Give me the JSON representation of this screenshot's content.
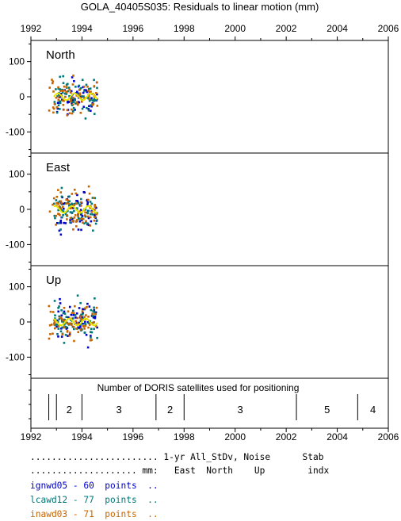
{
  "chart_data": {
    "type": "scatter",
    "title": "GOLA_40405S035: Residuals to linear motion (mm)",
    "x_ticks": [
      "1992",
      "1994",
      "1996",
      "1998",
      "2000",
      "2002",
      "2004",
      "2006"
    ],
    "xlim": [
      1992,
      2006
    ],
    "panels": [
      {
        "label": "North",
        "ylim": [
          -160,
          160
        ],
        "y_ticks": [
          "100",
          "0",
          "-100"
        ]
      },
      {
        "label": "East",
        "ylim": [
          -160,
          160
        ],
        "y_ticks": [
          "100",
          "0",
          "-100"
        ]
      },
      {
        "label": "Up",
        "ylim": [
          -160,
          160
        ],
        "y_ticks": [
          "100",
          "0",
          "-100"
        ]
      }
    ],
    "series": [
      {
        "name": "ignwd05",
        "color": "#0000c8",
        "x_range": [
          1993.0,
          1994.6
        ],
        "points": 60
      },
      {
        "name": "lcawd12",
        "color": "#007878",
        "x_range": [
          1992.9,
          1994.6
        ],
        "points": 77
      },
      {
        "name": "inawd03",
        "color": "#c86400",
        "x_range": [
          1992.7,
          1994.6
        ],
        "points": 71
      }
    ],
    "smooth_color": "#e6e600",
    "satellites": {
      "title": "Number of DORIS satellites used for positioning",
      "segments": [
        {
          "start": 1992.7,
          "end": 1993.0,
          "label": ""
        },
        {
          "start": 1993.0,
          "end": 1994.0,
          "label": "2"
        },
        {
          "start": 1994.0,
          "end": 1996.9,
          "label": "3"
        },
        {
          "start": 1996.9,
          "end": 1998.0,
          "label": "2"
        },
        {
          "start": 1998.0,
          "end": 2002.4,
          "label": "3"
        },
        {
          "start": 2002.4,
          "end": 2004.8,
          "label": "5"
        },
        {
          "start": 2004.8,
          "end": 2006.0,
          "label": "4"
        }
      ]
    }
  },
  "legend": {
    "header1": "........................ 1-yr All_StDv, Noise      Stab",
    "header2": ".................... mm:   East  North    Up        indx",
    "rows": [
      {
        "text": "ignwd05 - 60  points  ..",
        "color": "#0000c8"
      },
      {
        "text": "lcawd12 - 77  points  ..",
        "color": "#007878"
      },
      {
        "text": "inawd03 - 71  points  ..",
        "color": "#c86400"
      }
    ]
  }
}
